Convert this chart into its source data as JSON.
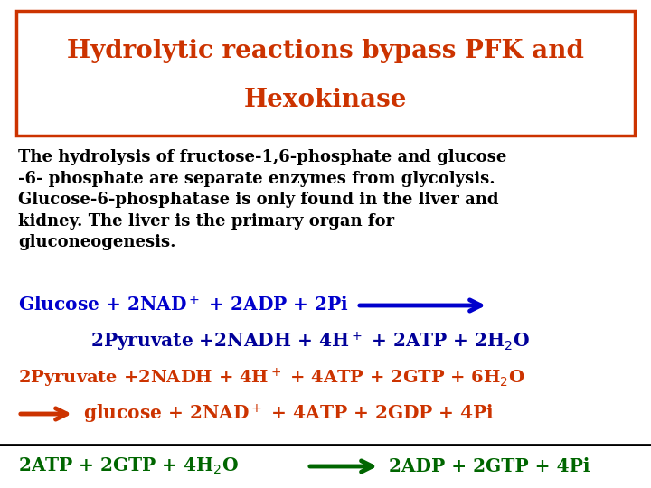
{
  "bg_color": "#ffffff",
  "title_line1": "Hydrolytic reactions bypass PFK and",
  "title_line2": "Hexokinase",
  "title_color": "#cc3300",
  "title_box_edge_color": "#cc3300",
  "body_text": "The hydrolysis of fructose-1,6-phosphate and glucose\n-6- phosphate are separate enzymes from glycolysis.\nGlucose-6-phosphatase is only found in the liver and\nkidney. The liver is the primary organ for\ngluconeogenesis.",
  "body_color": "#000000",
  "line1_color": "#0000cc",
  "line1_arrow_color": "#0000cc",
  "line2_color": "#000099",
  "line3_color": "#cc3300",
  "line4_color": "#cc3300",
  "line4_arrow_color": "#cc3300",
  "bottom_color": "#006600",
  "bottom_arrow_color": "#006600",
  "separator_color": "#000000"
}
